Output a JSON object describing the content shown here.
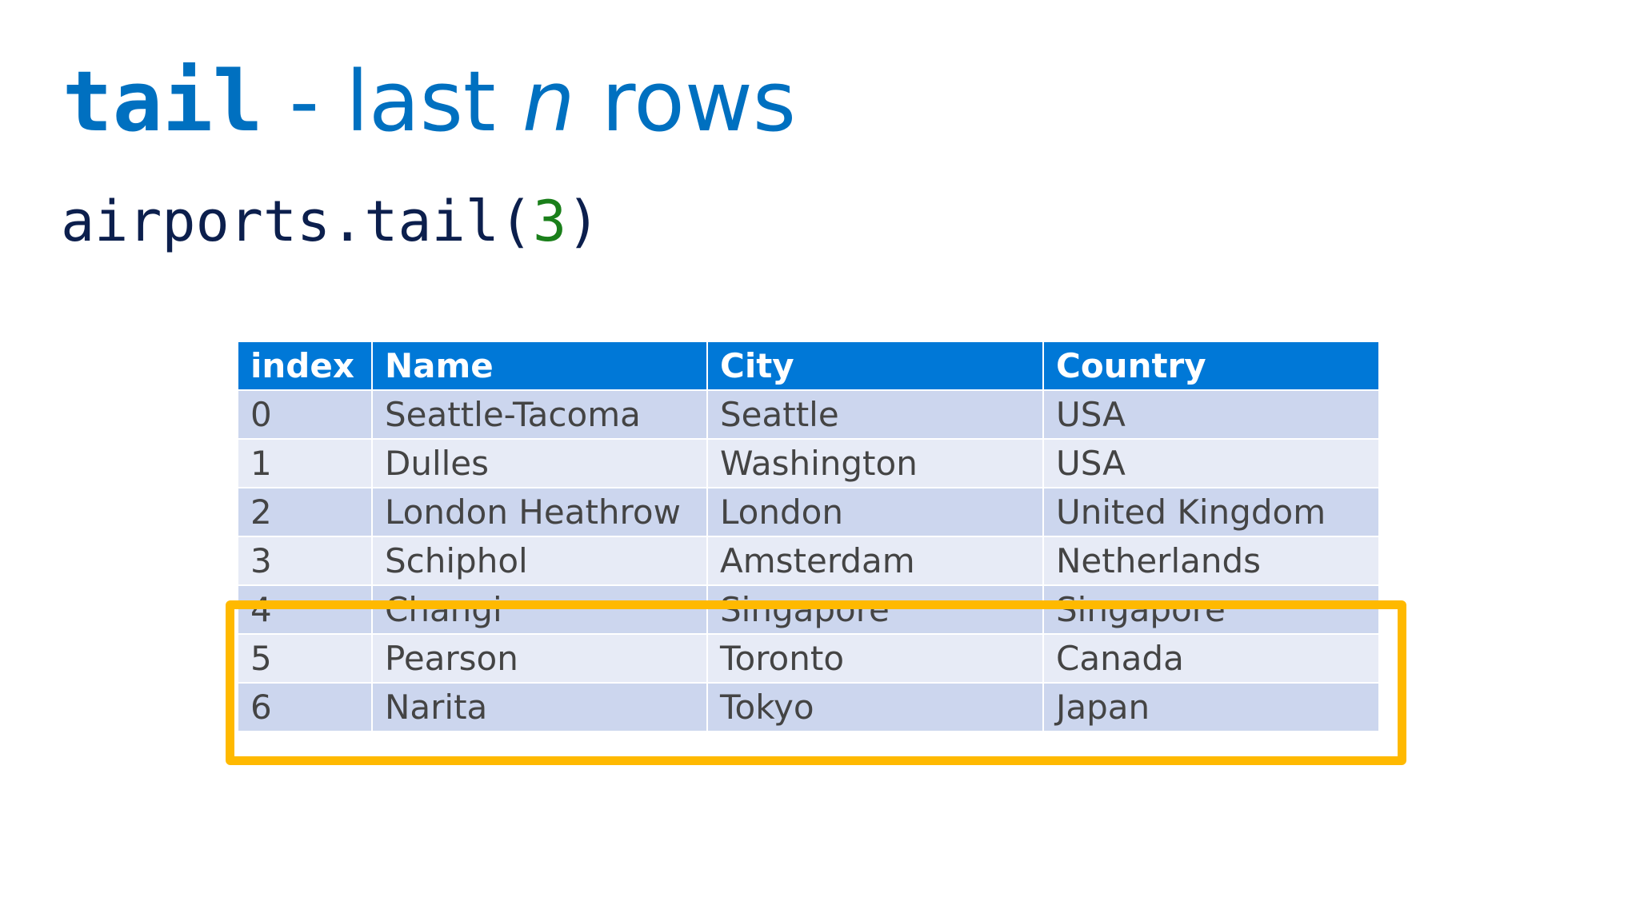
{
  "title": {
    "command": "tail",
    "separator": " - last ",
    "variable": "n",
    "suffix": " rows"
  },
  "code": {
    "prefix": "airports.tail(",
    "argument": "3",
    "suffix": ")"
  },
  "table": {
    "headers": [
      "index",
      "Name",
      "City",
      "Country"
    ],
    "rows": [
      [
        "0",
        "Seattle-Tacoma",
        "Seattle",
        "USA"
      ],
      [
        "1",
        "Dulles",
        "Washington",
        "USA"
      ],
      [
        "2",
        "London Heathrow",
        "London",
        "United Kingdom"
      ],
      [
        "3",
        "Schiphol",
        "Amsterdam",
        "Netherlands"
      ],
      [
        "4",
        "Changi",
        "Singapore",
        "Singapore"
      ],
      [
        "5",
        "Pearson",
        "Toronto",
        "Canada"
      ],
      [
        "6",
        "Narita",
        "Tokyo",
        "Japan"
      ]
    ],
    "highlighted_rows": [
      4,
      5,
      6
    ]
  },
  "colors": {
    "title": "#0070C0",
    "header_bg": "#0078D7",
    "row_odd": "#CCD6EE",
    "row_even": "#E7EBF6",
    "highlight": "#FFB900",
    "code_text": "#0C1F4D",
    "code_number": "#1A7F1A"
  }
}
